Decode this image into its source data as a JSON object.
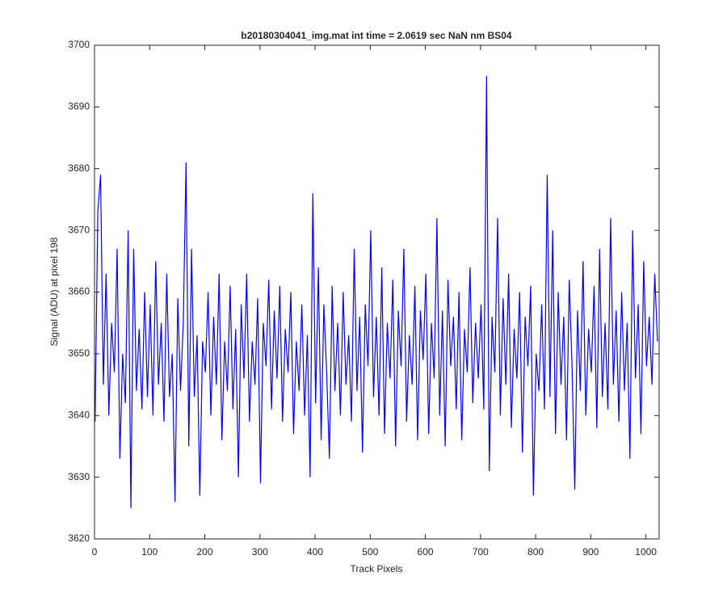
{
  "chart_data": {
    "type": "line",
    "title": "b20180304041_img.mat int time = 2.0619 sec  NaN nm BS04",
    "x_label": "Track Pixels",
    "y_label": "Signal (ADU) at pixel 198",
    "xlim": [
      0,
      1024
    ],
    "xticks": [
      0,
      100,
      200,
      300,
      400,
      500,
      600,
      700,
      800,
      900,
      1000
    ],
    "ylim": [
      3620,
      3700
    ],
    "yticks": [
      3620,
      3630,
      3640,
      3650,
      3660,
      3670,
      3680,
      3690,
      3700
    ],
    "color": "#0000ff",
    "x": [
      1,
      6,
      11,
      16,
      21,
      26,
      31,
      36,
      41,
      46,
      51,
      56,
      61,
      66,
      71,
      76,
      81,
      86,
      91,
      96,
      101,
      106,
      111,
      116,
      121,
      126,
      131,
      136,
      141,
      146,
      151,
      156,
      161,
      166,
      171,
      176,
      181,
      186,
      191,
      196,
      201,
      206,
      211,
      216,
      221,
      226,
      231,
      236,
      241,
      246,
      251,
      256,
      261,
      266,
      271,
      276,
      281,
      286,
      291,
      296,
      301,
      306,
      311,
      316,
      321,
      326,
      331,
      336,
      341,
      346,
      351,
      356,
      361,
      366,
      371,
      376,
      381,
      386,
      391,
      396,
      401,
      406,
      411,
      416,
      421,
      426,
      431,
      436,
      441,
      446,
      451,
      456,
      461,
      466,
      471,
      476,
      481,
      486,
      491,
      496,
      501,
      506,
      511,
      516,
      521,
      526,
      531,
      536,
      541,
      546,
      551,
      556,
      561,
      566,
      571,
      576,
      581,
      586,
      591,
      596,
      601,
      606,
      611,
      616,
      621,
      626,
      631,
      636,
      641,
      646,
      651,
      656,
      661,
      666,
      671,
      676,
      681,
      686,
      691,
      696,
      701,
      706,
      711,
      716,
      721,
      726,
      731,
      736,
      741,
      746,
      751,
      756,
      761,
      766,
      771,
      776,
      781,
      786,
      791,
      796,
      801,
      806,
      811,
      816,
      821,
      826,
      831,
      836,
      841,
      846,
      851,
      856,
      861,
      866,
      871,
      876,
      881,
      886,
      891,
      896,
      901,
      906,
      911,
      916,
      921,
      926,
      931,
      936,
      941,
      946,
      951,
      956,
      961,
      966,
      971,
      976,
      981,
      986,
      991,
      996,
      1001,
      1006,
      1011,
      1016,
      1021
    ],
    "values": [
      3639,
      3673,
      3679,
      3645,
      3663,
      3640,
      3655,
      3647,
      3667,
      3633,
      3650,
      3642,
      3670,
      3625,
      3667,
      3644,
      3654,
      3641,
      3660,
      3643,
      3658,
      3640,
      3665,
      3645,
      3655,
      3639,
      3663,
      3643,
      3650,
      3626,
      3659,
      3644,
      3655,
      3681,
      3635,
      3667,
      3643,
      3653,
      3627,
      3652,
      3647,
      3660,
      3640,
      3656,
      3645,
      3663,
      3636,
      3652,
      3644,
      3661,
      3641,
      3654,
      3630,
      3658,
      3646,
      3663,
      3639,
      3652,
      3645,
      3659,
      3629,
      3655,
      3648,
      3662,
      3641,
      3657,
      3646,
      3661,
      3639,
      3654,
      3647,
      3660,
      3637,
      3652,
      3644,
      3658,
      3640,
      3653,
      3630,
      3676,
      3642,
      3664,
      3636,
      3658,
      3647,
      3633,
      3661,
      3644,
      3655,
      3640,
      3660,
      3645,
      3653,
      3639,
      3667,
      3644,
      3656,
      3634,
      3658,
      3648,
      3670,
      3643,
      3656,
      3640,
      3664,
      3637,
      3655,
      3646,
      3662,
      3635,
      3657,
      3648,
      3667,
      3639,
      3653,
      3645,
      3661,
      3636,
      3657,
      3649,
      3663,
      3637,
      3655,
      3646,
      3672,
      3640,
      3657,
      3635,
      3662,
      3648,
      3656,
      3641,
      3660,
      3636,
      3654,
      3647,
      3664,
      3642,
      3655,
      3646,
      3658,
      3641,
      3695,
      3631,
      3656,
      3647,
      3672,
      3640,
      3659,
      3645,
      3663,
      3638,
      3654,
      3646,
      3660,
      3634,
      3656,
      3648,
      3661,
      3627,
      3650,
      3644,
      3658,
      3641,
      3679,
      3643,
      3670,
      3637,
      3660,
      3645,
      3656,
      3636,
      3662,
      3648,
      3628,
      3657,
      3644,
      3665,
      3640,
      3654,
      3647,
      3661,
      3638,
      3667,
      3643,
      3655,
      3641,
      3672,
      3645,
      3657,
      3639,
      3660,
      3644,
      3655,
      3633,
      3670,
      3646,
      3658,
      3637,
      3665,
      3648,
      3656,
      3645,
      3663,
      3652
    ]
  }
}
